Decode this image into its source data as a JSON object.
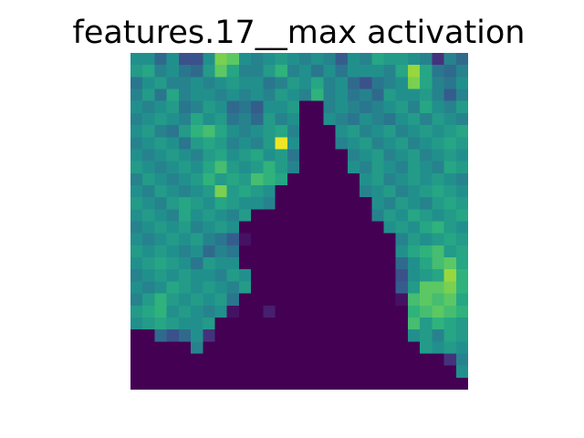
{
  "chart_data": {
    "type": "heatmap",
    "title": "features.17__max activation",
    "xlabel": "",
    "ylabel": "",
    "axes_visible": false,
    "grid": false,
    "legend": "none",
    "colormap": "viridis",
    "vmin": 0,
    "vmax": 1,
    "rows": 28,
    "cols": 28,
    "z": [
      [
        0.5,
        0.5,
        0.35,
        0.5,
        0.25,
        0.25,
        0.5,
        0.8,
        0.75,
        0.5,
        0.45,
        0.5,
        0.55,
        0.5,
        0.45,
        0.5,
        0.45,
        0.3,
        0.5,
        0.45,
        0.6,
        0.55,
        0.55,
        0.5,
        0.45,
        0.15,
        0.45,
        0.35
      ],
      [
        0.55,
        0.6,
        0.45,
        0.5,
        0.4,
        0.35,
        0.55,
        0.75,
        0.6,
        0.45,
        0.45,
        0.55,
        0.65,
        0.45,
        0.5,
        0.4,
        0.5,
        0.4,
        0.5,
        0.5,
        0.5,
        0.45,
        0.6,
        0.85,
        0.6,
        0.4,
        0.35,
        0.45
      ],
      [
        0.4,
        0.5,
        0.55,
        0.45,
        0.45,
        0.5,
        0.45,
        0.5,
        0.55,
        0.5,
        0.5,
        0.4,
        0.45,
        0.55,
        0.5,
        0.6,
        0.45,
        0.5,
        0.35,
        0.25,
        0.4,
        0.45,
        0.5,
        0.8,
        0.6,
        0.45,
        0.4,
        0.5
      ],
      [
        0.45,
        0.55,
        0.4,
        0.6,
        0.45,
        0.5,
        0.5,
        0.45,
        0.5,
        0.45,
        0.5,
        0.45,
        0.55,
        0.5,
        0.45,
        0.65,
        0.45,
        0.5,
        0.4,
        0.45,
        0.35,
        0.55,
        0.5,
        0.5,
        0.55,
        0.45,
        0.3,
        0.45
      ],
      [
        0.5,
        0.45,
        0.5,
        0.55,
        0.4,
        0.45,
        0.55,
        0.5,
        0.35,
        0.4,
        0.3,
        0.5,
        0.5,
        0.55,
        0.0,
        0.0,
        0.45,
        0.5,
        0.45,
        0.4,
        0.45,
        0.5,
        0.55,
        0.45,
        0.6,
        0.5,
        0.45,
        0.55
      ],
      [
        0.45,
        0.5,
        0.55,
        0.5,
        0.45,
        0.6,
        0.5,
        0.55,
        0.4,
        0.45,
        0.35,
        0.55,
        0.45,
        0.5,
        0.0,
        0.0,
        0.5,
        0.45,
        0.4,
        0.5,
        0.45,
        0.4,
        0.5,
        0.55,
        0.45,
        0.55,
        0.5,
        0.45
      ],
      [
        0.5,
        0.55,
        0.45,
        0.4,
        0.55,
        0.65,
        0.7,
        0.6,
        0.5,
        0.45,
        0.5,
        0.55,
        0.6,
        0.45,
        0.0,
        0.0,
        0.0,
        0.5,
        0.55,
        0.45,
        0.5,
        0.55,
        0.45,
        0.5,
        0.55,
        0.5,
        0.55,
        0.6
      ],
      [
        0.45,
        0.5,
        0.55,
        0.5,
        0.4,
        0.55,
        0.6,
        0.55,
        0.45,
        0.5,
        0.45,
        0.55,
        0.98,
        0.5,
        0.0,
        0.0,
        0.0,
        0.45,
        0.5,
        0.55,
        0.45,
        0.5,
        0.55,
        0.45,
        0.5,
        0.55,
        0.6,
        0.55
      ],
      [
        0.5,
        0.45,
        0.5,
        0.55,
        0.5,
        0.45,
        0.55,
        0.6,
        0.5,
        0.55,
        0.6,
        0.5,
        0.55,
        0.4,
        0.0,
        0.0,
        0.0,
        0.0,
        0.45,
        0.5,
        0.55,
        0.45,
        0.5,
        0.55,
        0.45,
        0.5,
        0.55,
        0.5
      ],
      [
        0.55,
        0.5,
        0.45,
        0.5,
        0.55,
        0.5,
        0.6,
        0.7,
        0.55,
        0.5,
        0.55,
        0.65,
        0.55,
        0.45,
        0.0,
        0.0,
        0.0,
        0.0,
        0.5,
        0.45,
        0.55,
        0.5,
        0.45,
        0.55,
        0.5,
        0.45,
        0.6,
        0.55
      ],
      [
        0.45,
        0.55,
        0.5,
        0.45,
        0.5,
        0.55,
        0.65,
        0.55,
        0.6,
        0.55,
        0.7,
        0.65,
        0.6,
        0.0,
        0.0,
        0.0,
        0.0,
        0.0,
        0.0,
        0.5,
        0.55,
        0.45,
        0.5,
        0.55,
        0.5,
        0.55,
        0.5,
        0.45
      ],
      [
        0.5,
        0.45,
        0.55,
        0.5,
        0.45,
        0.5,
        0.55,
        0.8,
        0.55,
        0.6,
        0.55,
        0.5,
        0.0,
        0.0,
        0.0,
        0.0,
        0.0,
        0.0,
        0.0,
        0.45,
        0.5,
        0.55,
        0.45,
        0.5,
        0.55,
        0.6,
        0.55,
        0.5
      ],
      [
        0.55,
        0.5,
        0.45,
        0.55,
        0.6,
        0.55,
        0.5,
        0.6,
        0.55,
        0.5,
        0.5,
        0.45,
        0.0,
        0.0,
        0.0,
        0.0,
        0.0,
        0.0,
        0.0,
        0.0,
        0.5,
        0.45,
        0.55,
        0.5,
        0.45,
        0.55,
        0.6,
        0.55
      ],
      [
        0.5,
        0.55,
        0.5,
        0.45,
        0.6,
        0.5,
        0.55,
        0.5,
        0.45,
        0.55,
        0.0,
        0.0,
        0.0,
        0.0,
        0.0,
        0.0,
        0.0,
        0.0,
        0.0,
        0.0,
        0.45,
        0.55,
        0.5,
        0.6,
        0.55,
        0.5,
        0.55,
        0.6
      ],
      [
        0.45,
        0.5,
        0.55,
        0.5,
        0.55,
        0.45,
        0.5,
        0.55,
        0.5,
        0.0,
        0.0,
        0.0,
        0.0,
        0.0,
        0.0,
        0.0,
        0.0,
        0.0,
        0.0,
        0.0,
        0.0,
        0.5,
        0.55,
        0.5,
        0.6,
        0.65,
        0.55,
        0.5
      ],
      [
        0.5,
        0.45,
        0.5,
        0.55,
        0.5,
        0.55,
        0.45,
        0.4,
        0.3,
        0.05,
        0.0,
        0.0,
        0.0,
        0.0,
        0.0,
        0.0,
        0.0,
        0.0,
        0.0,
        0.0,
        0.0,
        0.0,
        0.45,
        0.55,
        0.5,
        0.55,
        0.6,
        0.55
      ],
      [
        0.55,
        0.5,
        0.55,
        0.5,
        0.45,
        0.5,
        0.35,
        0.45,
        0.4,
        0.0,
        0.0,
        0.0,
        0.0,
        0.0,
        0.0,
        0.0,
        0.0,
        0.0,
        0.0,
        0.0,
        0.0,
        0.0,
        0.5,
        0.6,
        0.65,
        0.7,
        0.55,
        0.6
      ],
      [
        0.5,
        0.55,
        0.6,
        0.55,
        0.5,
        0.4,
        0.55,
        0.5,
        0.5,
        0.0,
        0.0,
        0.0,
        0.0,
        0.0,
        0.0,
        0.0,
        0.0,
        0.0,
        0.0,
        0.0,
        0.0,
        0.0,
        0.35,
        0.5,
        0.6,
        0.7,
        0.75,
        0.6
      ],
      [
        0.45,
        0.5,
        0.55,
        0.5,
        0.55,
        0.5,
        0.5,
        0.45,
        0.55,
        0.5,
        0.0,
        0.0,
        0.0,
        0.0,
        0.0,
        0.0,
        0.0,
        0.0,
        0.0,
        0.0,
        0.0,
        0.0,
        0.25,
        0.5,
        0.55,
        0.6,
        0.85,
        0.65
      ],
      [
        0.5,
        0.45,
        0.5,
        0.6,
        0.55,
        0.5,
        0.55,
        0.5,
        0.45,
        0.55,
        0.0,
        0.0,
        0.0,
        0.0,
        0.0,
        0.0,
        0.0,
        0.0,
        0.0,
        0.0,
        0.0,
        0.0,
        0.3,
        0.55,
        0.75,
        0.75,
        0.8,
        0.65
      ],
      [
        0.45,
        0.55,
        0.65,
        0.55,
        0.5,
        0.55,
        0.5,
        0.55,
        0.4,
        0.0,
        0.0,
        0.0,
        0.0,
        0.0,
        0.0,
        0.0,
        0.0,
        0.0,
        0.0,
        0.0,
        0.0,
        0.0,
        0.05,
        0.7,
        0.75,
        0.7,
        0.75,
        0.6
      ],
      [
        0.55,
        0.6,
        0.65,
        0.5,
        0.55,
        0.5,
        0.45,
        0.5,
        0.05,
        0.0,
        0.0,
        0.09,
        0.0,
        0.0,
        0.0,
        0.0,
        0.0,
        0.0,
        0.0,
        0.0,
        0.0,
        0.0,
        0.0,
        0.65,
        0.7,
        0.75,
        0.7,
        0.65
      ],
      [
        0.5,
        0.55,
        0.6,
        0.55,
        0.5,
        0.5,
        0.55,
        0.0,
        0.0,
        0.0,
        0.0,
        0.0,
        0.0,
        0.0,
        0.0,
        0.0,
        0.0,
        0.0,
        0.0,
        0.0,
        0.0,
        0.0,
        0.0,
        0.7,
        0.55,
        0.65,
        0.6,
        0.55
      ],
      [
        0.0,
        0.0,
        0.35,
        0.25,
        0.35,
        0.5,
        0.15,
        0.0,
        0.0,
        0.0,
        0.0,
        0.0,
        0.0,
        0.0,
        0.0,
        0.0,
        0.0,
        0.0,
        0.0,
        0.0,
        0.0,
        0.0,
        0.0,
        0.5,
        0.55,
        0.45,
        0.6,
        0.55
      ],
      [
        0.0,
        0.0,
        0.0,
        0.0,
        0.0,
        0.45,
        0.0,
        0.0,
        0.0,
        0.0,
        0.0,
        0.0,
        0.0,
        0.0,
        0.0,
        0.0,
        0.0,
        0.0,
        0.0,
        0.0,
        0.0,
        0.0,
        0.0,
        0.0,
        0.55,
        0.5,
        0.55,
        0.5
      ],
      [
        0.0,
        0.0,
        0.0,
        0.0,
        0.0,
        0.0,
        0.0,
        0.0,
        0.0,
        0.0,
        0.0,
        0.0,
        0.0,
        0.0,
        0.0,
        0.0,
        0.0,
        0.0,
        0.0,
        0.0,
        0.0,
        0.0,
        0.0,
        0.0,
        0.0,
        0.0,
        0.15,
        0.45
      ],
      [
        0.0,
        0.0,
        0.0,
        0.0,
        0.0,
        0.0,
        0.0,
        0.0,
        0.0,
        0.0,
        0.0,
        0.0,
        0.0,
        0.0,
        0.0,
        0.0,
        0.0,
        0.0,
        0.0,
        0.0,
        0.0,
        0.0,
        0.0,
        0.0,
        0.0,
        0.0,
        0.0,
        0.5
      ],
      [
        0.0,
        0.0,
        0.0,
        0.0,
        0.0,
        0.0,
        0.0,
        0.0,
        0.0,
        0.0,
        0.0,
        0.0,
        0.0,
        0.0,
        0.0,
        0.0,
        0.0,
        0.0,
        0.0,
        0.0,
        0.0,
        0.0,
        0.0,
        0.0,
        0.0,
        0.0,
        0.0,
        0.0
      ]
    ]
  }
}
